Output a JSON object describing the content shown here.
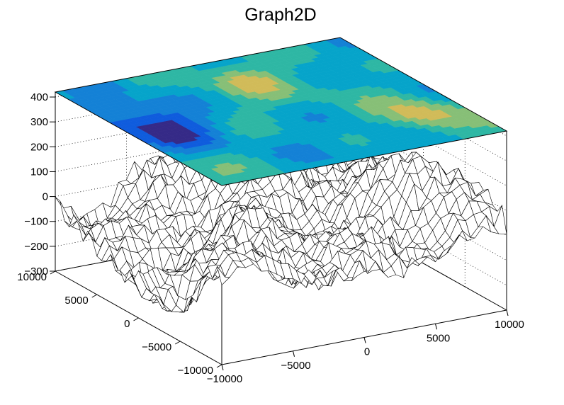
{
  "chart_data": {
    "type": "surface",
    "title": "Graph2D",
    "xlabel": "",
    "ylabel": "",
    "zlabel": "",
    "xlim": [
      -10000,
      10000
    ],
    "ylim": [
      -10000,
      10000
    ],
    "zlim": [
      -300,
      420
    ],
    "x_ticks": [
      -10000,
      -5000,
      0,
      5000,
      10000
    ],
    "y_ticks": [
      -10000,
      -5000,
      0,
      5000,
      10000
    ],
    "z_ticks": [
      -300,
      -200,
      -100,
      0,
      100,
      200,
      300,
      400
    ],
    "x_tick_labels": [
      "−10000",
      "−5000",
      "0",
      "5000",
      "10000"
    ],
    "y_tick_labels": [
      "−10000",
      "−5000",
      "0",
      "5000",
      "10000"
    ],
    "z_tick_labels": [
      "−300",
      "−200",
      "−100",
      "0",
      "100",
      "200",
      "300",
      "400"
    ],
    "grid": true,
    "surface_style": "wireframe mesh with color-contour projection on top plane",
    "palette": [
      "#352a87",
      "#0f5cdd",
      "#1481d6",
      "#06a4ca",
      "#2eb7a4",
      "#87bf77",
      "#d1bb59",
      "#fec832",
      "#f9fb0e"
    ]
  }
}
